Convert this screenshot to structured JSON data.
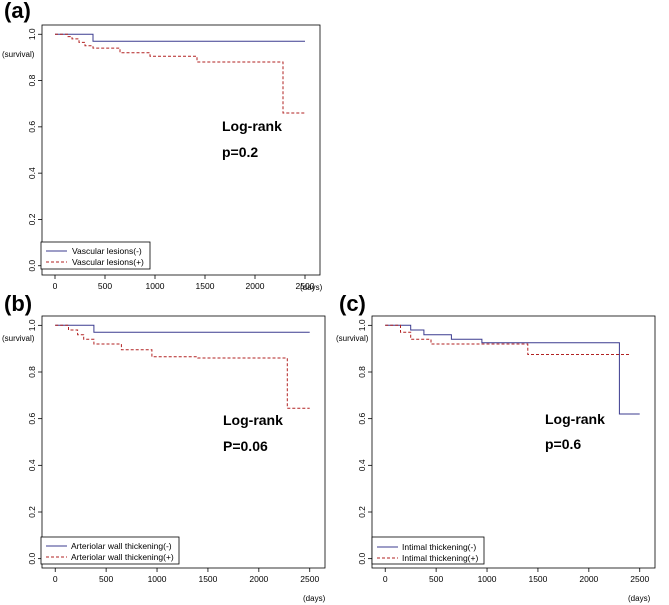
{
  "colors": {
    "negative": "#3b3b8f",
    "positive": "#b22222",
    "axis": "#000000"
  },
  "chart_data": [
    {
      "type": "line",
      "panel": "(a)",
      "ylabel": "(survival)",
      "xlabel": "(days)",
      "xlim": [
        -130,
        2650
      ],
      "ylim": [
        -0.04,
        1.04
      ],
      "xticks": [
        0,
        500,
        1000,
        1500,
        2000,
        2500
      ],
      "yticks": [
        0.0,
        0.2,
        0.4,
        0.6,
        0.8,
        1.0
      ],
      "ytick_labels": [
        "0.0",
        "0.2",
        "0.4",
        "0.6",
        "0.8",
        "1.0"
      ],
      "annotation": [
        "Log-rank",
        "p=0.2"
      ],
      "series": [
        {
          "name": "Vascular lesions(-)",
          "style": "solid",
          "color_key": "negative",
          "x": [
            0,
            380,
            380,
            2500
          ],
          "y": [
            1.0,
            1.0,
            0.97,
            0.97
          ]
        },
        {
          "name": "Vascular lesions(+)",
          "style": "dashed",
          "color_key": "positive",
          "x": [
            0,
            130,
            130,
            170,
            170,
            240,
            240,
            300,
            300,
            380,
            380,
            650,
            650,
            950,
            950,
            1420,
            1420,
            2280,
            2280,
            2500
          ],
          "y": [
            1.0,
            1.0,
            0.99,
            0.99,
            0.98,
            0.98,
            0.965,
            0.965,
            0.95,
            0.95,
            0.94,
            0.94,
            0.92,
            0.92,
            0.905,
            0.905,
            0.88,
            0.88,
            0.66,
            0.66
          ]
        }
      ]
    },
    {
      "type": "line",
      "panel": "(b)",
      "ylabel": "(survival)",
      "xlabel": "(days)",
      "xlim": [
        -130,
        2650
      ],
      "ylim": [
        -0.04,
        1.04
      ],
      "xticks": [
        0,
        500,
        1000,
        1500,
        2000,
        2500
      ],
      "yticks": [
        0.0,
        0.2,
        0.4,
        0.6,
        0.8,
        1.0
      ],
      "ytick_labels": [
        "0.0",
        "0.2",
        "0.4",
        "0.6",
        "0.8",
        "1.0"
      ],
      "annotation": [
        "Log-rank",
        "P=0.06"
      ],
      "series": [
        {
          "name": "Arteriolar wall thickening(-)",
          "style": "solid",
          "color_key": "negative",
          "x": [
            0,
            380,
            380,
            2500
          ],
          "y": [
            1.0,
            1.0,
            0.97,
            0.97
          ]
        },
        {
          "name": "Arteriolar wall thickening(+)",
          "style": "dashed",
          "color_key": "positive",
          "x": [
            0,
            130,
            130,
            220,
            220,
            280,
            280,
            380,
            380,
            650,
            650,
            950,
            950,
            1400,
            1400,
            2280,
            2280,
            2500
          ],
          "y": [
            1.0,
            1.0,
            0.98,
            0.98,
            0.96,
            0.96,
            0.94,
            0.94,
            0.92,
            0.92,
            0.895,
            0.895,
            0.865,
            0.865,
            0.86,
            0.86,
            0.645,
            0.645
          ]
        }
      ]
    },
    {
      "type": "line",
      "panel": "(c)",
      "ylabel": "(survival)",
      "xlabel": "(days)",
      "xlim": [
        -130,
        2650
      ],
      "ylim": [
        -0.04,
        1.04
      ],
      "xticks": [
        0,
        500,
        1000,
        1500,
        2000,
        2500
      ],
      "yticks": [
        0.0,
        0.2,
        0.4,
        0.6,
        0.8,
        1.0
      ],
      "ytick_labels": [
        "0.0",
        "0.2",
        "0.4",
        "0.6",
        "0.8",
        "1.0"
      ],
      "annotation": [
        "Log-rank",
        "p=0.6"
      ],
      "series": [
        {
          "name": "Intimal thickening(-)",
          "style": "solid",
          "color_key": "negative",
          "x": [
            0,
            250,
            250,
            380,
            380,
            650,
            650,
            950,
            950,
            2300,
            2300,
            2500
          ],
          "y": [
            1.0,
            1.0,
            0.98,
            0.98,
            0.96,
            0.96,
            0.94,
            0.94,
            0.925,
            0.925,
            0.62,
            0.62
          ]
        },
        {
          "name": "Intimal thickening(+)",
          "style": "dashed",
          "color_key": "positive",
          "x": [
            0,
            150,
            150,
            250,
            250,
            450,
            450,
            1400,
            1400,
            2400
          ],
          "y": [
            1.0,
            1.0,
            0.97,
            0.97,
            0.94,
            0.94,
            0.92,
            0.92,
            0.875,
            0.875
          ]
        }
      ]
    }
  ]
}
